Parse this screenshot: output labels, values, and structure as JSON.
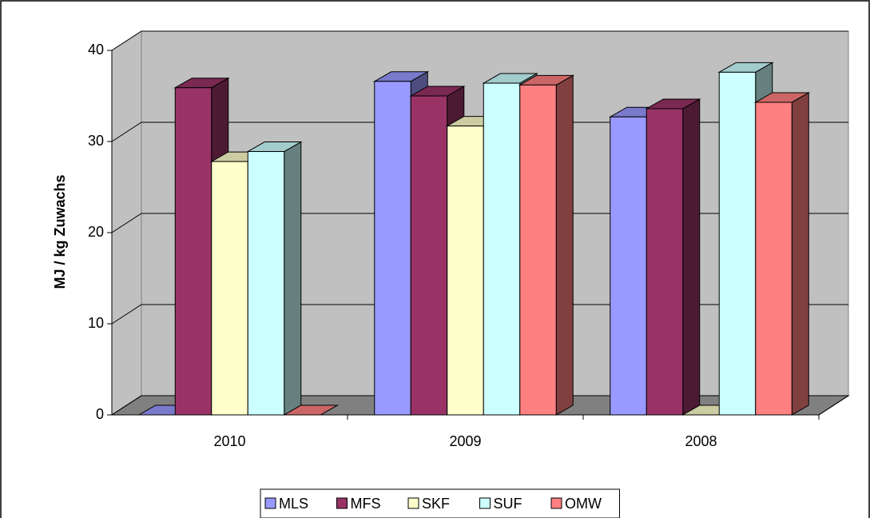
{
  "chart_data": {
    "type": "bar3d",
    "y_label": "MJ / kg Zuwachs",
    "categories": [
      "2010",
      "2009",
      "2008"
    ],
    "series": [
      {
        "name": "MLS",
        "color": "#9999ff",
        "values": [
          0,
          36.6,
          32.7
        ]
      },
      {
        "name": "MFS",
        "color": "#993366",
        "values": [
          35.9,
          35.0,
          33.6
        ]
      },
      {
        "name": "SKF",
        "color": "#ffffcc",
        "values": [
          27.8,
          31.7,
          0
        ]
      },
      {
        "name": "SUF",
        "color": "#ccffff",
        "values": [
          28.9,
          36.4,
          37.6
        ]
      },
      {
        "name": "OMW",
        "color": "#ff8080",
        "values": [
          0,
          36.2,
          34.3
        ]
      }
    ],
    "ylim": [
      0,
      40
    ],
    "yticks": [
      0,
      10,
      20,
      30,
      40
    ],
    "grid": true,
    "legend": "bottom"
  }
}
